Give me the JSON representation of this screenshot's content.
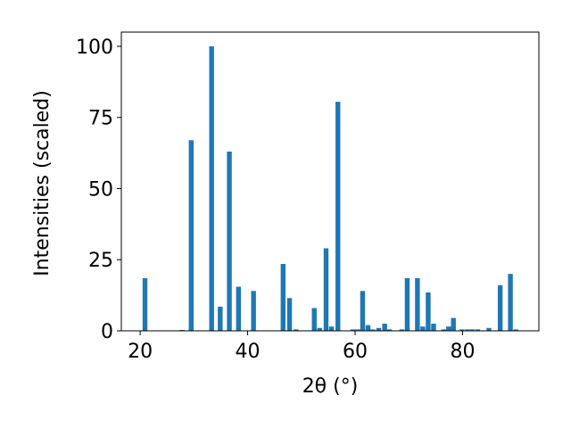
{
  "chart_data": {
    "type": "bar",
    "xlabel": "2θ (°)",
    "ylabel": "Intensities (scaled)",
    "xlim": [
      16.5,
      94.2
    ],
    "ylim": [
      0,
      105
    ],
    "xticks": [
      20,
      40,
      60,
      80
    ],
    "yticks": [
      0,
      25,
      50,
      75,
      100
    ],
    "bar_color": "#1f77b4",
    "grid": false,
    "legend": "none",
    "x": [
      20.9,
      27.8,
      29.5,
      33.3,
      34.9,
      36.6,
      38.3,
      41.1,
      46.6,
      47.8,
      49.0,
      52.4,
      53.4,
      54.6,
      55.6,
      56.8,
      59.6,
      60.5,
      61.4,
      62.4,
      63.3,
      64.4,
      65.5,
      66.4,
      68.7,
      69.7,
      71.6,
      72.6,
      73.6,
      74.6,
      76.5,
      77.4,
      78.3,
      79.9,
      80.9,
      81.8,
      82.8,
      84.9,
      87.0,
      88.9,
      89.9
    ],
    "values": [
      18.5,
      0.3,
      67,
      100,
      8.5,
      63,
      15.5,
      14,
      23.5,
      11.5,
      0.5,
      8,
      1,
      29,
      1.5,
      80.5,
      0.5,
      0.5,
      14,
      2,
      0.5,
      1,
      2.5,
      0.5,
      0.5,
      18.5,
      18.5,
      1.5,
      13.5,
      2.5,
      0.5,
      1.5,
      4.5,
      0.5,
      0.5,
      0.5,
      0.5,
      1,
      16,
      20,
      0.5
    ]
  }
}
